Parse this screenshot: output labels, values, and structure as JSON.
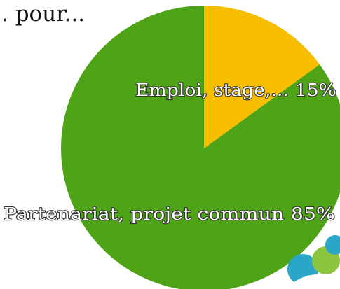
{
  "chart_data": {
    "type": "pie",
    "title": ". pour...",
    "categories": [
      "Emploi, stage,...",
      "Partenariat, projet commun"
    ],
    "values": [
      15,
      85
    ],
    "value_labels": [
      "15%",
      "85%"
    ],
    "colors": [
      "#f7be00",
      "#4fa317"
    ]
  }
}
